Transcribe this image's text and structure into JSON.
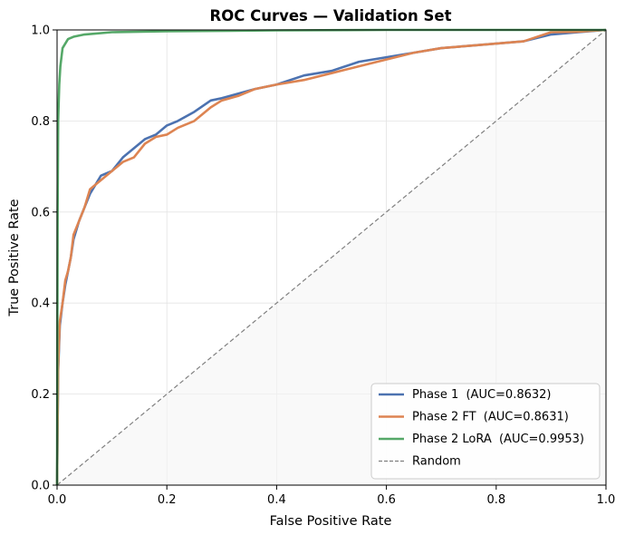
{
  "chart_data": {
    "type": "line",
    "title": "ROC Curves — Validation Set",
    "xlabel": "False Positive Rate",
    "ylabel": "True Positive Rate",
    "xlim": [
      0.0,
      1.0
    ],
    "ylim": [
      0.0,
      1.0
    ],
    "xticks": [
      "0.0",
      "0.2",
      "0.4",
      "0.6",
      "0.8",
      "1.0"
    ],
    "yticks": [
      "0.0",
      "0.2",
      "0.4",
      "0.6",
      "0.8",
      "1.0"
    ],
    "grid": true,
    "legend_position": "lower-right",
    "series": [
      {
        "name": "Phase 1  (AUC=0.8632)",
        "color": "#4c72b0",
        "x": [
          0.0,
          0.002,
          0.005,
          0.01,
          0.015,
          0.02,
          0.025,
          0.03,
          0.04,
          0.05,
          0.06,
          0.07,
          0.08,
          0.1,
          0.12,
          0.14,
          0.16,
          0.18,
          0.2,
          0.22,
          0.25,
          0.28,
          0.3,
          0.33,
          0.36,
          0.4,
          0.45,
          0.5,
          0.55,
          0.6,
          0.65,
          0.7,
          0.75,
          0.8,
          0.85,
          0.9,
          0.95,
          1.0
        ],
        "y": [
          0.0,
          0.25,
          0.35,
          0.4,
          0.44,
          0.47,
          0.5,
          0.54,
          0.58,
          0.61,
          0.64,
          0.66,
          0.68,
          0.69,
          0.72,
          0.74,
          0.76,
          0.77,
          0.79,
          0.8,
          0.82,
          0.845,
          0.85,
          0.86,
          0.87,
          0.88,
          0.9,
          0.91,
          0.93,
          0.94,
          0.95,
          0.96,
          0.965,
          0.97,
          0.975,
          0.99,
          0.995,
          1.0
        ]
      },
      {
        "name": "Phase 2 FT  (AUC=0.8631)",
        "color": "#dd8452",
        "x": [
          0.0,
          0.002,
          0.005,
          0.01,
          0.015,
          0.02,
          0.025,
          0.03,
          0.04,
          0.05,
          0.06,
          0.07,
          0.08,
          0.1,
          0.12,
          0.14,
          0.16,
          0.18,
          0.2,
          0.22,
          0.25,
          0.28,
          0.3,
          0.33,
          0.36,
          0.4,
          0.45,
          0.5,
          0.55,
          0.6,
          0.65,
          0.7,
          0.75,
          0.8,
          0.85,
          0.9,
          0.95,
          1.0
        ],
        "y": [
          0.0,
          0.26,
          0.36,
          0.4,
          0.45,
          0.47,
          0.5,
          0.55,
          0.58,
          0.61,
          0.65,
          0.66,
          0.67,
          0.69,
          0.71,
          0.72,
          0.75,
          0.765,
          0.77,
          0.785,
          0.8,
          0.83,
          0.845,
          0.855,
          0.87,
          0.88,
          0.89,
          0.905,
          0.92,
          0.935,
          0.95,
          0.96,
          0.965,
          0.97,
          0.975,
          0.995,
          0.996,
          1.0
        ]
      },
      {
        "name": "Phase 2 LoRA  (AUC=0.9953)",
        "color": "#55a868",
        "x": [
          0.0,
          0.001,
          0.002,
          0.004,
          0.006,
          0.008,
          0.01,
          0.015,
          0.02,
          0.03,
          0.05,
          0.1,
          0.2,
          0.4,
          0.6,
          0.8,
          1.0
        ],
        "y": [
          0.0,
          0.6,
          0.8,
          0.88,
          0.92,
          0.94,
          0.96,
          0.97,
          0.98,
          0.985,
          0.99,
          0.995,
          0.997,
          0.999,
          1.0,
          1.0,
          1.0
        ]
      }
    ],
    "reference_line": {
      "name": "Random",
      "color": "#808080",
      "style": "dashed",
      "x": [
        0.0,
        1.0
      ],
      "y": [
        0.0,
        1.0
      ]
    }
  }
}
